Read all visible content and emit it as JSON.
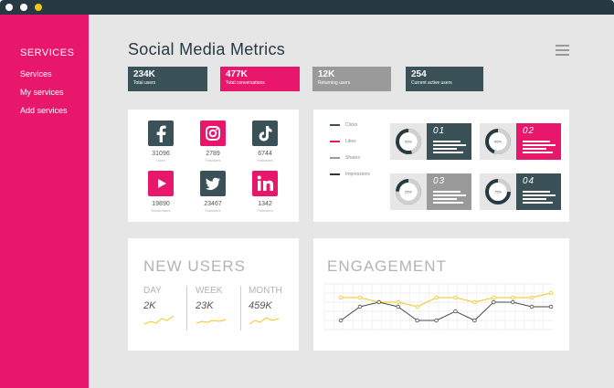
{
  "window": {
    "dots": [
      {
        "name": "close-dot",
        "color": "#ffffff"
      },
      {
        "name": "minimize-dot",
        "color": "#ffffff"
      },
      {
        "name": "maximize-dot",
        "color": "#f5c518"
      }
    ]
  },
  "sidebar": {
    "heading": "SERVICES",
    "items": [
      {
        "label": "Services"
      },
      {
        "label": "My services"
      },
      {
        "label": "Add services"
      }
    ]
  },
  "header": {
    "title": "Social Media Metrics"
  },
  "stats": [
    {
      "value": "234K",
      "label": "Total users",
      "color": "#3b5158"
    },
    {
      "value": "477K",
      "label": "Total conversations",
      "color": "#e8176b"
    },
    {
      "value": "12K",
      "label": "Returning users",
      "color": "#9a9a9a"
    },
    {
      "value": "254",
      "label": "Current active users",
      "color": "#3b5158"
    }
  ],
  "social": [
    {
      "platform": "facebook-icon",
      "count": "31096",
      "sub": "Likes",
      "color": "#3b5158"
    },
    {
      "platform": "instagram-icon",
      "count": "2789",
      "sub": "Followers",
      "color": "#e8176b"
    },
    {
      "platform": "tiktok-icon",
      "count": "6744",
      "sub": "Followers",
      "color": "#3b5158"
    },
    {
      "platform": "youtube-icon",
      "count": "19890",
      "sub": "Subscribers",
      "color": "#e8176b"
    },
    {
      "platform": "twitter-icon",
      "count": "23467",
      "sub": "Followers",
      "color": "#3b5158"
    },
    {
      "platform": "linkedin-icon",
      "count": "1342",
      "sub": "Followers",
      "color": "#e8176b"
    }
  ],
  "legend": [
    {
      "label": "Clicks",
      "color": "#3b5158"
    },
    {
      "label": "Likes",
      "color": "#e8176b"
    },
    {
      "label": "Shares",
      "color": "#9a9a9a"
    },
    {
      "label": "Impressions",
      "color": "#273a41"
    }
  ],
  "donuts": [
    {
      "number": "01",
      "percent": "55%",
      "value": 0.55,
      "color": "#3b5158"
    },
    {
      "number": "02",
      "percent": "45%",
      "value": 0.45,
      "color": "#e8176b"
    },
    {
      "number": "03",
      "percent": "25%",
      "value": 0.25,
      "color": "#9a9a9a"
    },
    {
      "number": "04",
      "percent": "75%",
      "value": 0.75,
      "color": "#3b5158"
    }
  ],
  "new_users": {
    "title": "NEW USERS",
    "columns": [
      {
        "period": "DAY",
        "value": "2K"
      },
      {
        "period": "WEEK",
        "value": "23K"
      },
      {
        "period": "MONTH",
        "value": "459K"
      }
    ],
    "sparkline_color": "#f5c518"
  },
  "engagement": {
    "title": "ENGAGEMENT",
    "yellow_color": "#f5c518",
    "dark_color": "#4a4a4a"
  },
  "chart_data": {
    "type": "line",
    "title": "ENGAGEMENT",
    "xlabel": "",
    "ylabel": "",
    "x": [
      "1",
      "2",
      "3",
      "4",
      "5",
      "6",
      "7",
      "8",
      "9",
      "10",
      "11",
      "12"
    ],
    "ylim": [
      0,
      10
    ],
    "grid": true,
    "series": [
      {
        "values": [
          7,
          7,
          6,
          6,
          5,
          7,
          7,
          6,
          7,
          7,
          7,
          8
        ]
      },
      {
        "values": [
          2,
          5,
          6,
          5,
          2,
          2,
          4,
          2,
          6,
          6,
          5,
          5
        ]
      }
    ]
  }
}
